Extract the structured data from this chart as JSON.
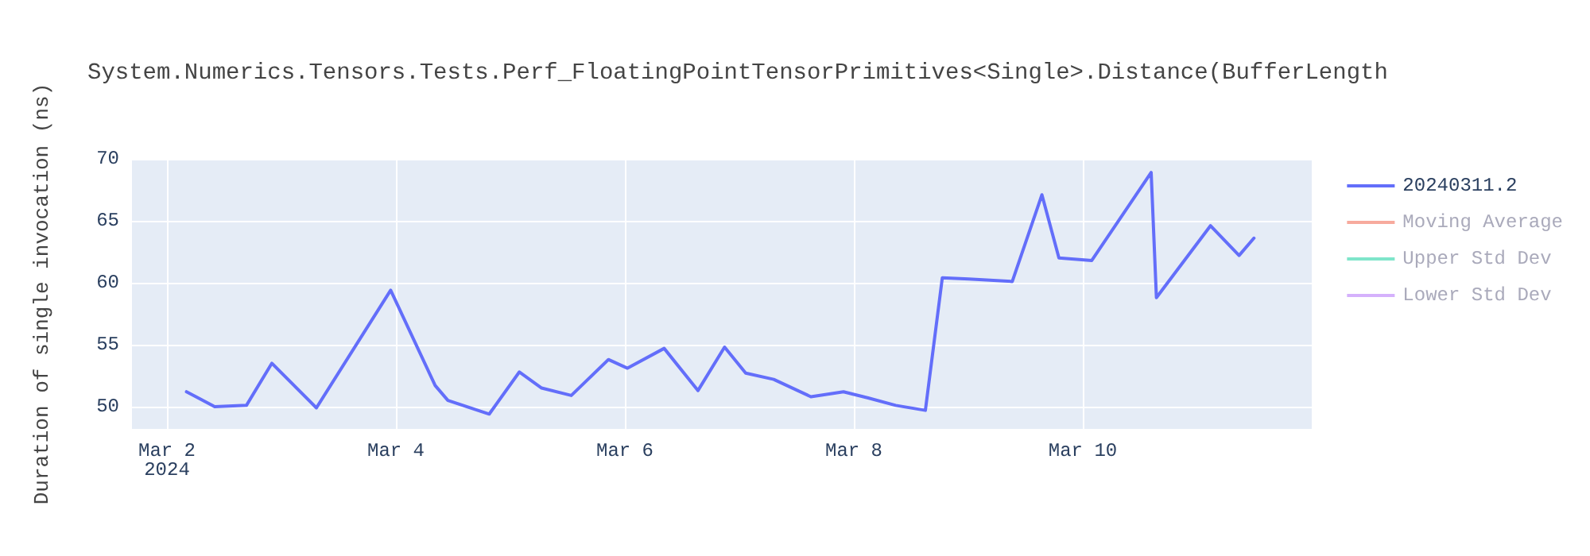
{
  "chart_data": {
    "type": "line",
    "title": "System.Numerics.Tensors.Tests.Perf_FloatingPointTensorPrimitives<Single>.Distance(BufferLength",
    "ylabel": "Duration of single invocation (ns)",
    "x": [
      "2024-03-02T04:06",
      "2024-03-02T10:00",
      "2024-03-02T16:40",
      "2024-03-02T22:00",
      "2024-03-03T07:20",
      "2024-03-03T22:54",
      "2024-03-04T08:14",
      "2024-03-04T10:54",
      "2024-03-04T19:34",
      "2024-03-05T01:53",
      "2024-03-05T06:33",
      "2024-03-05T12:46",
      "2024-03-05T20:33",
      "2024-03-06T00:33",
      "2024-03-06T08:14",
      "2024-03-06T15:20",
      "2024-03-06T20:54",
      "2024-03-07T01:20",
      "2024-03-07T07:12",
      "2024-03-07T15:00",
      "2024-03-07T21:50",
      "2024-03-08T03:00",
      "2024-03-08T08:47",
      "2024-03-08T15:00",
      "2024-03-08T18:33",
      "2024-03-09T00:06",
      "2024-03-09T09:13",
      "2024-03-09T15:26",
      "2024-03-09T19:00",
      "2024-03-10T01:53",
      "2024-03-10T14:20",
      "2024-03-10T15:26",
      "2024-03-11T02:46",
      "2024-03-11T08:46",
      "2024-03-11T11:53"
    ],
    "series": [
      {
        "name": "20240311.2",
        "color": "#636efa",
        "values": [
          51.2,
          50.0,
          50.1,
          53.5,
          49.9,
          59.4,
          51.7,
          50.5,
          49.4,
          52.8,
          51.5,
          50.9,
          53.8,
          53.1,
          54.7,
          51.3,
          54.8,
          52.7,
          52.2,
          50.8,
          51.2,
          50.7,
          50.1,
          49.7,
          60.4,
          60.3,
          60.1,
          67.1,
          62.0,
          61.8,
          68.9,
          58.8,
          64.6,
          62.2,
          63.6
        ]
      },
      {
        "name": "Moving Average",
        "color": "#ef553b",
        "values": [
          null,
          null,
          null,
          null,
          null,
          null,
          null,
          null,
          null,
          null,
          null,
          null,
          null,
          null,
          null,
          null,
          null,
          null,
          null,
          null,
          null,
          null,
          null,
          null,
          null,
          null,
          null,
          null,
          null,
          null,
          null,
          null,
          null,
          null,
          null
        ]
      },
      {
        "name": "Upper Std Dev",
        "color": "#00cc96",
        "values": [
          null,
          null,
          null,
          null,
          null,
          null,
          null,
          null,
          null,
          null,
          null,
          null,
          null,
          null,
          null,
          null,
          null,
          null,
          null,
          null,
          null,
          null,
          null,
          null,
          null,
          null,
          null,
          null,
          null,
          null,
          null,
          null,
          null,
          null,
          null
        ]
      },
      {
        "name": "Lower Std Dev",
        "color": "#ab63fa",
        "values": [
          null,
          null,
          null,
          null,
          null,
          null,
          null,
          null,
          null,
          null,
          null,
          null,
          null,
          null,
          null,
          null,
          null,
          null,
          null,
          null,
          null,
          null,
          null,
          null,
          null,
          null,
          null,
          null,
          null,
          null,
          null,
          null,
          null,
          null,
          null
        ]
      }
    ],
    "xlim": [
      "2024-03-01T16:40",
      "2024-03-12T00:00"
    ],
    "xticks": [
      {
        "value": "2024-03-02",
        "label": "Mar 2\n2024"
      },
      {
        "value": "2024-03-04",
        "label": "Mar 4"
      },
      {
        "value": "2024-03-06",
        "label": "Mar 6"
      },
      {
        "value": "2024-03-08",
        "label": "Mar 8"
      },
      {
        "value": "2024-03-10",
        "label": "Mar 10"
      }
    ],
    "ylim": [
      48.2,
      70
    ],
    "yticks": [
      50,
      55,
      60,
      65,
      70
    ],
    "grid": true,
    "legend": "top right",
    "marker": "none",
    "line_style": "solid"
  }
}
